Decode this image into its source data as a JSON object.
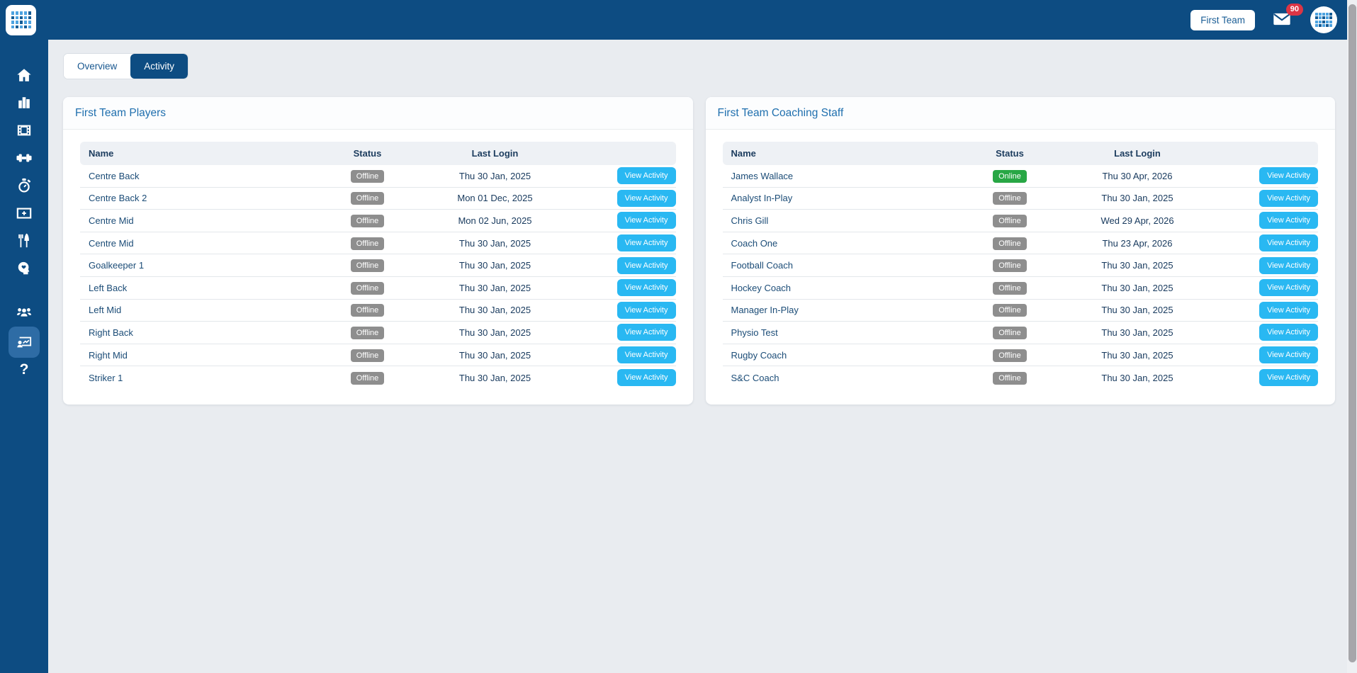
{
  "topbar": {
    "team_button_label": "First Team",
    "mail_badge": "90"
  },
  "sidebar": {
    "items": [
      {
        "icon": "home-icon"
      },
      {
        "icon": "bar-chart-icon"
      },
      {
        "icon": "film-icon"
      },
      {
        "icon": "dumbbell-icon"
      },
      {
        "icon": "stopwatch-icon"
      },
      {
        "icon": "video-plus-icon"
      },
      {
        "icon": "nutrition-icon"
      },
      {
        "icon": "mind-heart-icon"
      },
      {
        "icon": "users-icon"
      },
      {
        "icon": "activity-presentation-icon",
        "active": true
      },
      {
        "icon": "help-icon"
      }
    ],
    "help_glyph": "?"
  },
  "tabs": [
    {
      "label": "Overview",
      "active": false
    },
    {
      "label": "Activity",
      "active": true
    }
  ],
  "panels": [
    {
      "title": "First Team Players",
      "columns": [
        "Name",
        "Status",
        "Last Login"
      ],
      "action_label": "View Activity",
      "rows": [
        {
          "name": "Centre Back",
          "status": "Offline",
          "last_login": "Thu 30 Jan, 2025"
        },
        {
          "name": "Centre Back 2",
          "status": "Offline",
          "last_login": "Mon 01 Dec, 2025"
        },
        {
          "name": "Centre Mid",
          "status": "Offline",
          "last_login": "Mon 02 Jun, 2025"
        },
        {
          "name": "Centre Mid",
          "status": "Offline",
          "last_login": "Thu 30 Jan, 2025"
        },
        {
          "name": "Goalkeeper 1",
          "status": "Offline",
          "last_login": "Thu 30 Jan, 2025"
        },
        {
          "name": "Left Back",
          "status": "Offline",
          "last_login": "Thu 30 Jan, 2025"
        },
        {
          "name": "Left Mid",
          "status": "Offline",
          "last_login": "Thu 30 Jan, 2025"
        },
        {
          "name": "Right Back",
          "status": "Offline",
          "last_login": "Thu 30 Jan, 2025"
        },
        {
          "name": "Right Mid",
          "status": "Offline",
          "last_login": "Thu 30 Jan, 2025"
        },
        {
          "name": "Striker 1",
          "status": "Offline",
          "last_login": "Thu 30 Jan, 2025"
        }
      ]
    },
    {
      "title": "First Team Coaching Staff",
      "columns": [
        "Name",
        "Status",
        "Last Login"
      ],
      "action_label": "View Activity",
      "rows": [
        {
          "name": "James Wallace",
          "status": "Online",
          "last_login": "Thu 30 Apr, 2026"
        },
        {
          "name": "Analyst In-Play",
          "status": "Offline",
          "last_login": "Thu 30 Jan, 2025"
        },
        {
          "name": "Chris Gill",
          "status": "Offline",
          "last_login": "Wed 29 Apr, 2026"
        },
        {
          "name": "Coach One",
          "status": "Offline",
          "last_login": "Thu 23 Apr, 2026"
        },
        {
          "name": "Football Coach",
          "status": "Offline",
          "last_login": "Thu 30 Jan, 2025"
        },
        {
          "name": "Hockey Coach",
          "status": "Offline",
          "last_login": "Thu 30 Jan, 2025"
        },
        {
          "name": "Manager In-Play",
          "status": "Offline",
          "last_login": "Thu 30 Jan, 2025"
        },
        {
          "name": "Physio Test",
          "status": "Offline",
          "last_login": "Thu 30 Jan, 2025"
        },
        {
          "name": "Rugby Coach",
          "status": "Offline",
          "last_login": "Thu 30 Jan, 2025"
        },
        {
          "name": "S&C Coach",
          "status": "Offline",
          "last_login": "Thu 30 Jan, 2025"
        }
      ]
    }
  ],
  "colors": {
    "navbar_navy": "#0d4c82",
    "active_nav_bg": "#2e6ca5",
    "page_bg": "#e9ecf0",
    "panel_title_blue": "#1f6fae",
    "link_navy": "#1b4c77",
    "offline_badge_gray": "#8e8e8e",
    "online_badge_green": "#28a745",
    "view_activity_blue": "#29b8f2",
    "mail_badge_red": "#dc3545"
  }
}
